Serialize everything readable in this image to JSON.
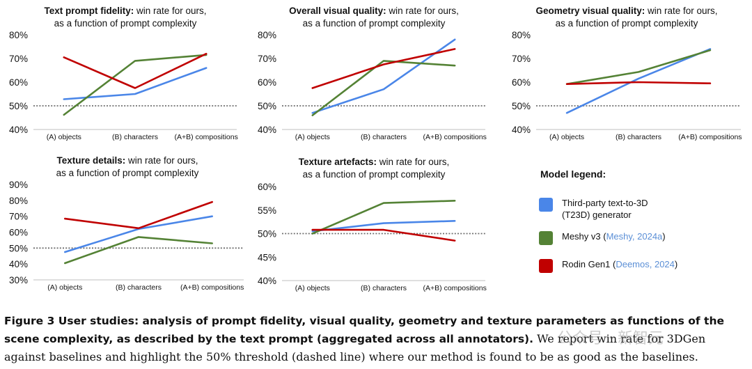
{
  "colors": {
    "t23d": "#4a86e8",
    "meshy": "#548235",
    "rodin": "#c00000",
    "threshold": "#6d6d6d"
  },
  "chart_data": [
    {
      "type": "line",
      "title_bold": "Text prompt fidelity:",
      "title_rest": " win rate for ours,",
      "subtitle": "as a function of prompt complexity",
      "categories": [
        "(A) objects",
        "(B) characters",
        "(A+B) compositions"
      ],
      "yticks": [
        "40%",
        "50%",
        "60%",
        "70%",
        "80%"
      ],
      "ylim": [
        40,
        80
      ],
      "threshold": 50,
      "series": [
        {
          "name": "Third-party text-to-3D (T23D) generator",
          "key": "t23d",
          "values": [
            52.8,
            55,
            66
          ]
        },
        {
          "name": "Meshy v3",
          "key": "meshy",
          "values": [
            46.2,
            69,
            71.5
          ]
        },
        {
          "name": "Rodin Gen1",
          "key": "rodin",
          "values": [
            70.5,
            57.5,
            72
          ]
        }
      ]
    },
    {
      "type": "line",
      "title_bold": "Overall visual quality:",
      "title_rest": " win rate for ours,",
      "subtitle": "as a function of prompt complexity",
      "categories": [
        "(A) objects",
        "(B) characters",
        "(A+B) compositions"
      ],
      "yticks": [
        "40%",
        "50%",
        "60%",
        "70%",
        "80%"
      ],
      "ylim": [
        40,
        80
      ],
      "threshold": 50,
      "series": [
        {
          "name": "Third-party text-to-3D (T23D) generator",
          "key": "t23d",
          "values": [
            47,
            57,
            78
          ]
        },
        {
          "name": "Meshy v3",
          "key": "meshy",
          "values": [
            46,
            69,
            67
          ]
        },
        {
          "name": "Rodin Gen1",
          "key": "rodin",
          "values": [
            57.5,
            67.5,
            74
          ]
        }
      ]
    },
    {
      "type": "line",
      "title_bold": "Geometry visual quality:",
      "title_rest": " win rate for ours,",
      "subtitle": "as a function of prompt complexity",
      "categories": [
        "(A) objects",
        "(B) characters",
        "(A+B) compositions"
      ],
      "yticks": [
        "40%",
        "50%",
        "60%",
        "70%",
        "80%"
      ],
      "ylim": [
        40,
        80
      ],
      "threshold": 50,
      "series": [
        {
          "name": "Third-party text-to-3D (T23D) generator",
          "key": "t23d",
          "values": [
            47,
            61.5,
            74
          ]
        },
        {
          "name": "Meshy v3",
          "key": "meshy",
          "values": [
            59.2,
            64.3,
            73.5
          ]
        },
        {
          "name": "Rodin Gen1",
          "key": "rodin",
          "values": [
            59.2,
            60,
            59.5
          ]
        }
      ]
    },
    {
      "type": "line",
      "title_bold": "Texture details:",
      "title_rest": " win rate for ours,",
      "subtitle": "as a function of prompt complexity",
      "categories": [
        "(A) objects",
        "(B) characters",
        "(A+B) compositions"
      ],
      "yticks": [
        "30%",
        "40%",
        "50%",
        "60%",
        "70%",
        "80%",
        "90%"
      ],
      "ylim": [
        30,
        90
      ],
      "threshold": 50,
      "series": [
        {
          "name": "Third-party text-to-3D (T23D) generator",
          "key": "t23d",
          "values": [
            47.5,
            62,
            70
          ]
        },
        {
          "name": "Meshy v3",
          "key": "meshy",
          "values": [
            40.5,
            57,
            53
          ]
        },
        {
          "name": "Rodin Gen1",
          "key": "rodin",
          "values": [
            68.5,
            62.5,
            79
          ]
        }
      ]
    },
    {
      "type": "line",
      "title_bold": "Texture artefacts:",
      "title_rest": " win rate for ours,",
      "subtitle": "as a function of prompt complexity",
      "categories": [
        "(A) objects",
        "(B) characters",
        "(A+B) compositions"
      ],
      "yticks": [
        "40%",
        "45%",
        "50%",
        "55%",
        "60%"
      ],
      "ylim": [
        40,
        60
      ],
      "threshold": 50,
      "series": [
        {
          "name": "Third-party text-to-3D (T23D) generator",
          "key": "t23d",
          "values": [
            50.5,
            52.2,
            52.7
          ]
        },
        {
          "name": "Meshy v3",
          "key": "meshy",
          "values": [
            50,
            56.5,
            57
          ]
        },
        {
          "name": "Rodin Gen1",
          "key": "rodin",
          "values": [
            50.8,
            50.8,
            48.5
          ]
        }
      ]
    }
  ],
  "legend": {
    "title": "Model legend:",
    "t23d_line1": "Third-party text-to-3D",
    "t23d_line2": "(T23D) generator",
    "meshy_name": "Meshy v3 (",
    "meshy_cite": "Meshy, 2024a",
    "meshy_close": ")",
    "rodin_name": "Rodin Gen1 (",
    "rodin_cite": "Deemos, 2024",
    "rodin_close": ")"
  },
  "caption": {
    "bold": "Figure 3  User studies: analysis of prompt fidelity, visual quality, geometry and texture parameters as functions of the scene complexity, as described by the text prompt (aggregated across all annotators).",
    "rest": " We report win rate for 3DGen against baselines and highlight the 50% threshold (dashed line) where our method is found to be as good as the baselines."
  },
  "watermark": "公众号 · 新智元"
}
